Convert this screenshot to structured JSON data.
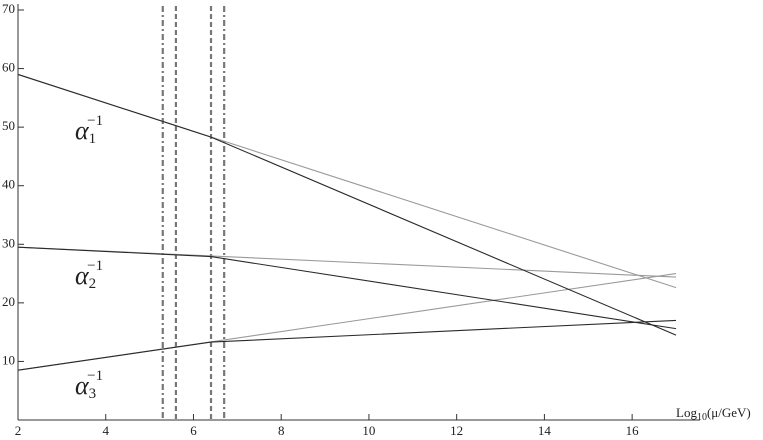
{
  "chart_data": {
    "type": "line",
    "xlim": [
      2,
      17
    ],
    "ylim": [
      0,
      70
    ],
    "xticks": [
      2,
      4,
      6,
      8,
      10,
      12,
      14,
      16
    ],
    "yticks": [
      10,
      20,
      30,
      40,
      50,
      60,
      70
    ],
    "x_label": {
      "text": "Log",
      "sub": "10",
      "rest": "(μ/GeV)"
    },
    "series": [
      {
        "color": "#9a9a9a",
        "x": [
          2,
          17
        ],
        "values": [
          59,
          22.6
        ]
      },
      {
        "color": "#9a9a9a",
        "x": [
          2,
          17
        ],
        "values": [
          29.5,
          24.4
        ]
      },
      {
        "color": "#9a9a9a",
        "x": [
          2,
          17
        ],
        "values": [
          8.5,
          25
        ]
      },
      {
        "color": "#2a2a2a",
        "x": [
          2,
          6.4,
          17
        ],
        "values": [
          59,
          48.3,
          14.5
        ]
      },
      {
        "color": "#2a2a2a",
        "x": [
          2,
          6.4,
          17
        ],
        "values": [
          29.5,
          27.9,
          15.6
        ]
      },
      {
        "color": "#2a2a2a",
        "x": [
          2,
          6.4,
          17
        ],
        "values": [
          8.5,
          13.3,
          17
        ]
      }
    ],
    "vlines": [
      {
        "x": 5.3,
        "style": "dashdot",
        "color": "#777777"
      },
      {
        "x": 5.6,
        "style": "dashed",
        "color": "#777777"
      },
      {
        "x": 6.4,
        "style": "dashed",
        "color": "#777777"
      },
      {
        "x": 6.7,
        "style": "dashdot",
        "color": "#777777"
      }
    ],
    "annotations": [
      {
        "symbol": "α",
        "sub": "1",
        "sup": "−1"
      },
      {
        "symbol": "α",
        "sub": "2",
        "sup": "−1"
      },
      {
        "symbol": "α",
        "sub": "3",
        "sup": "−1"
      }
    ]
  }
}
